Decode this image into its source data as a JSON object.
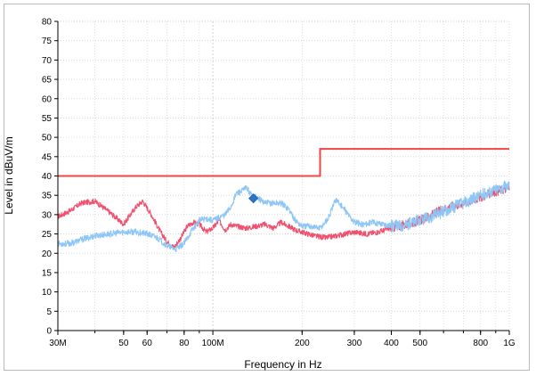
{
  "chart_data": {
    "type": "line",
    "title": "",
    "xlabel": "Frequency in Hz",
    "ylabel": "Level in dBuV/m",
    "x_scale": "log",
    "xlim": [
      30000000,
      1000000000
    ],
    "ylim": [
      0,
      80
    ],
    "grid": true,
    "x_ticks": [
      {
        "value": 30000000,
        "label": "30M"
      },
      {
        "value": 50000000,
        "label": "50"
      },
      {
        "value": 60000000,
        "label": "60"
      },
      {
        "value": 80000000,
        "label": "80"
      },
      {
        "value": 100000000,
        "label": "100M"
      },
      {
        "value": 200000000,
        "label": "200"
      },
      {
        "value": 300000000,
        "label": "300"
      },
      {
        "value": 400000000,
        "label": "400"
      },
      {
        "value": 500000000,
        "label": "500"
      },
      {
        "value": 800000000,
        "label": "800"
      },
      {
        "value": 1000000000,
        "label": "1G"
      }
    ],
    "y_ticks": [
      0,
      5,
      10,
      15,
      20,
      25,
      30,
      35,
      40,
      45,
      50,
      55,
      60,
      65,
      70,
      75,
      80
    ],
    "series": [
      {
        "color": "#f0506e",
        "x": [
          30000000,
          33000000,
          36000000,
          40000000,
          45000000,
          50000000,
          55000000,
          58000000,
          62000000,
          66000000,
          70000000,
          74000000,
          78000000,
          82000000,
          86000000,
          90000000,
          95000000,
          100000000,
          105000000,
          110000000,
          115000000,
          120000000,
          130000000,
          140000000,
          150000000,
          160000000,
          170000000,
          180000000,
          190000000,
          200000000,
          220000000,
          240000000,
          260000000,
          280000000,
          300000000,
          330000000,
          360000000,
          400000000,
          450000000,
          500000000,
          550000000,
          600000000,
          700000000,
          800000000,
          900000000,
          1000000000
        ],
        "y": [
          29.5,
          31,
          33,
          33.5,
          30.5,
          27.5,
          32,
          33.5,
          30,
          26,
          23,
          21.5,
          24,
          27,
          28,
          27.5,
          25.5,
          26.5,
          28.5,
          26,
          27.5,
          27,
          26.5,
          27,
          27.5,
          26.5,
          28,
          27,
          26,
          25.5,
          24.5,
          24,
          24.5,
          25,
          25.5,
          25,
          25.5,
          26.5,
          27.5,
          28.5,
          30,
          31.5,
          33,
          34.5,
          36,
          37
        ]
      },
      {
        "color": "#8ec6f5",
        "x": [
          30000000,
          33000000,
          36000000,
          40000000,
          45000000,
          50000000,
          55000000,
          60000000,
          65000000,
          70000000,
          75000000,
          80000000,
          85000000,
          90000000,
          95000000,
          100000000,
          110000000,
          115000000,
          120000000,
          125000000,
          130000000,
          135000000,
          140000000,
          150000000,
          160000000,
          170000000,
          180000000,
          190000000,
          200000000,
          215000000,
          230000000,
          245000000,
          260000000,
          280000000,
          300000000,
          320000000,
          350000000,
          380000000,
          410000000,
          450000000,
          500000000,
          550000000,
          600000000,
          700000000,
          800000000,
          900000000,
          1000000000
        ],
        "y": [
          22.5,
          22.5,
          23.5,
          24.5,
          25,
          25.5,
          25.5,
          25,
          24,
          22,
          21,
          22.5,
          26,
          28.5,
          29,
          28.5,
          30,
          32,
          35.5,
          36,
          37,
          35,
          34.5,
          33,
          33,
          33,
          31.5,
          28.5,
          27,
          27,
          26.5,
          29,
          34,
          31,
          28,
          27.5,
          28,
          27.5,
          27,
          27.5,
          28.5,
          29.5,
          31,
          33,
          35,
          36.5,
          37.5
        ]
      },
      {
        "color": "#f04646",
        "x": [
          30000000,
          230000000,
          230000000,
          1000000000
        ],
        "y": [
          40,
          40,
          47,
          47
        ]
      }
    ],
    "markers": [
      {
        "shape": "diamond",
        "color": "#2e74c4",
        "x": 137000000,
        "y": 34.2
      }
    ]
  }
}
